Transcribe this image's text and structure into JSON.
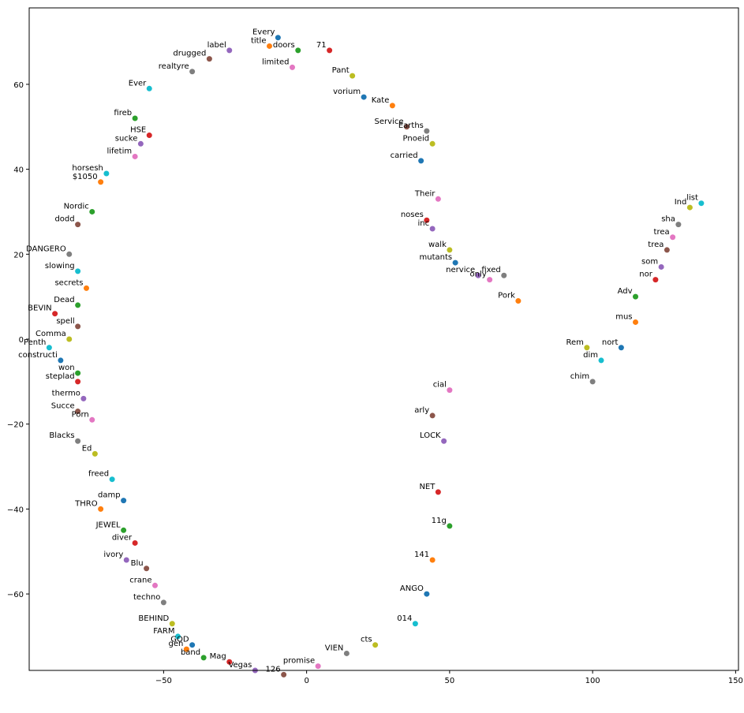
{
  "chart_data": {
    "type": "scatter",
    "title": "",
    "xlabel": "",
    "ylabel": "",
    "xlim": [
      -97,
      151
    ],
    "ylim": [
      -78,
      78
    ],
    "x_ticks": [
      -50,
      0,
      50,
      100,
      150
    ],
    "y_ticks": [
      -60,
      -40,
      -20,
      0,
      20,
      40,
      60
    ],
    "x_tick_labels": [
      "−50",
      "0",
      "50",
      "100",
      "150"
    ],
    "y_tick_labels": [
      "−60",
      "−40",
      "−20",
      "0",
      "20",
      "40",
      "60"
    ],
    "grid": false,
    "palette": [
      "#1f77b4",
      "#ff7f0e",
      "#2ca02c",
      "#d62728",
      "#9467bd",
      "#8c564b",
      "#e377c2",
      "#7f7f7f",
      "#bcbd22",
      "#17becf"
    ],
    "label_color": "#000000",
    "points": [
      {
        "x": -10,
        "y": 71,
        "label": "Every"
      },
      {
        "x": -13,
        "y": 69,
        "label": "title"
      },
      {
        "x": -3,
        "y": 68,
        "label": "doors"
      },
      {
        "x": 8,
        "y": 68,
        "label": "71"
      },
      {
        "x": -27,
        "y": 68,
        "label": "label"
      },
      {
        "x": -34,
        "y": 66,
        "label": "drugged"
      },
      {
        "x": -5,
        "y": 64,
        "label": "limited"
      },
      {
        "x": -40,
        "y": 63,
        "label": "realtyre"
      },
      {
        "x": 16,
        "y": 62,
        "label": "Pant"
      },
      {
        "x": -55,
        "y": 59,
        "label": "Ever"
      },
      {
        "x": 20,
        "y": 57,
        "label": "vorium"
      },
      {
        "x": 30,
        "y": 55,
        "label": "Kate"
      },
      {
        "x": -60,
        "y": 52,
        "label": "fireb"
      },
      {
        "x": -55,
        "y": 48,
        "label": "HSE"
      },
      {
        "x": -58,
        "y": 46,
        "label": "sucke"
      },
      {
        "x": 35,
        "y": 50,
        "label": "Service"
      },
      {
        "x": -60,
        "y": 43,
        "label": "lifetim"
      },
      {
        "x": 42,
        "y": 49,
        "label": "Earths"
      },
      {
        "x": 44,
        "y": 46,
        "label": "Pnoeid"
      },
      {
        "x": -70,
        "y": 39,
        "label": "horsesh"
      },
      {
        "x": 40,
        "y": 42,
        "label": "carried"
      },
      {
        "x": -72,
        "y": 37,
        "label": "$1050"
      },
      {
        "x": -75,
        "y": 30,
        "label": "Nordic"
      },
      {
        "x": 42,
        "y": 28,
        "label": "noses"
      },
      {
        "x": 44,
        "y": 26,
        "label": "inc"
      },
      {
        "x": -80,
        "y": 27,
        "label": "dodd"
      },
      {
        "x": 46,
        "y": 33,
        "label": "Their"
      },
      {
        "x": -83,
        "y": 20,
        "label": "DANGERO"
      },
      {
        "x": 50,
        "y": 21,
        "label": "walk"
      },
      {
        "x": -80,
        "y": 16,
        "label": "slowing"
      },
      {
        "x": 52,
        "y": 18,
        "label": "mutants"
      },
      {
        "x": -77,
        "y": 12,
        "label": "secrets"
      },
      {
        "x": -80,
        "y": 8,
        "label": "Dead"
      },
      {
        "x": -88,
        "y": 6,
        "label": "BEVIN"
      },
      {
        "x": 60,
        "y": 15,
        "label": "nervice"
      },
      {
        "x": -80,
        "y": 3,
        "label": "spell"
      },
      {
        "x": 64,
        "y": 14,
        "label": "only"
      },
      {
        "x": 69,
        "y": 15,
        "label": "fixed"
      },
      {
        "x": -83,
        "y": 0,
        "label": "Comma"
      },
      {
        "x": -90,
        "y": -2,
        "label": "Penth"
      },
      {
        "x": -86,
        "y": -5,
        "label": "constructi"
      },
      {
        "x": 74,
        "y": 9,
        "label": "Pork"
      },
      {
        "x": -80,
        "y": -8,
        "label": "won"
      },
      {
        "x": -80,
        "y": -10,
        "label": "steplad"
      },
      {
        "x": -78,
        "y": -14,
        "label": "thermo"
      },
      {
        "x": -80,
        "y": -17,
        "label": "Succe"
      },
      {
        "x": -75,
        "y": -19,
        "label": "Porn"
      },
      {
        "x": -80,
        "y": -24,
        "label": "Blacks"
      },
      {
        "x": -74,
        "y": -27,
        "label": "Ed"
      },
      {
        "x": -68,
        "y": -33,
        "label": "freed"
      },
      {
        "x": -64,
        "y": -38,
        "label": "damp"
      },
      {
        "x": -72,
        "y": -40,
        "label": "THRO"
      },
      {
        "x": -64,
        "y": -45,
        "label": "JEWEL"
      },
      {
        "x": -60,
        "y": -48,
        "label": "diver"
      },
      {
        "x": -63,
        "y": -52,
        "label": "ivory"
      },
      {
        "x": -56,
        "y": -54,
        "label": "Blu"
      },
      {
        "x": -53,
        "y": -58,
        "label": "crane"
      },
      {
        "x": -50,
        "y": -62,
        "label": "techno"
      },
      {
        "x": -47,
        "y": -67,
        "label": "BEHIND"
      },
      {
        "x": -45,
        "y": -70,
        "label": "FARM"
      },
      {
        "x": -40,
        "y": -72,
        "label": "GOD"
      },
      {
        "x": -42,
        "y": -73,
        "label": "gen"
      },
      {
        "x": -36,
        "y": -75,
        "label": "band"
      },
      {
        "x": -27,
        "y": -76,
        "label": "Mag"
      },
      {
        "x": -18,
        "y": -78,
        "label": "Vegas"
      },
      {
        "x": -8,
        "y": -79,
        "label": "126"
      },
      {
        "x": 4,
        "y": -77,
        "label": "promise"
      },
      {
        "x": 14,
        "y": -74,
        "label": "VIEN"
      },
      {
        "x": 24,
        "y": -72,
        "label": "cts"
      },
      {
        "x": 38,
        "y": -67,
        "label": "014"
      },
      {
        "x": 42,
        "y": -60,
        "label": "ANGO"
      },
      {
        "x": 44,
        "y": -52,
        "label": "141"
      },
      {
        "x": 50,
        "y": -44,
        "label": "11g"
      },
      {
        "x": 46,
        "y": -36,
        "label": "NET"
      },
      {
        "x": 48,
        "y": -24,
        "label": "LOCK"
      },
      {
        "x": 44,
        "y": -18,
        "label": "arly"
      },
      {
        "x": 50,
        "y": -12,
        "label": "cial"
      },
      {
        "x": 100,
        "y": -10,
        "label": "chim"
      },
      {
        "x": 98,
        "y": -2,
        "label": "Rem"
      },
      {
        "x": 103,
        "y": -5,
        "label": "dim"
      },
      {
        "x": 110,
        "y": -2,
        "label": "nort"
      },
      {
        "x": 115,
        "y": 4,
        "label": "mus"
      },
      {
        "x": 115,
        "y": 10,
        "label": "Adv"
      },
      {
        "x": 122,
        "y": 14,
        "label": "nor"
      },
      {
        "x": 124,
        "y": 17,
        "label": "som"
      },
      {
        "x": 126,
        "y": 21,
        "label": "trea"
      },
      {
        "x": 128,
        "y": 24,
        "label": "trea"
      },
      {
        "x": 130,
        "y": 27,
        "label": "sha"
      },
      {
        "x": 134,
        "y": 31,
        "label": "Ind"
      },
      {
        "x": 138,
        "y": 32,
        "label": "list"
      }
    ]
  }
}
